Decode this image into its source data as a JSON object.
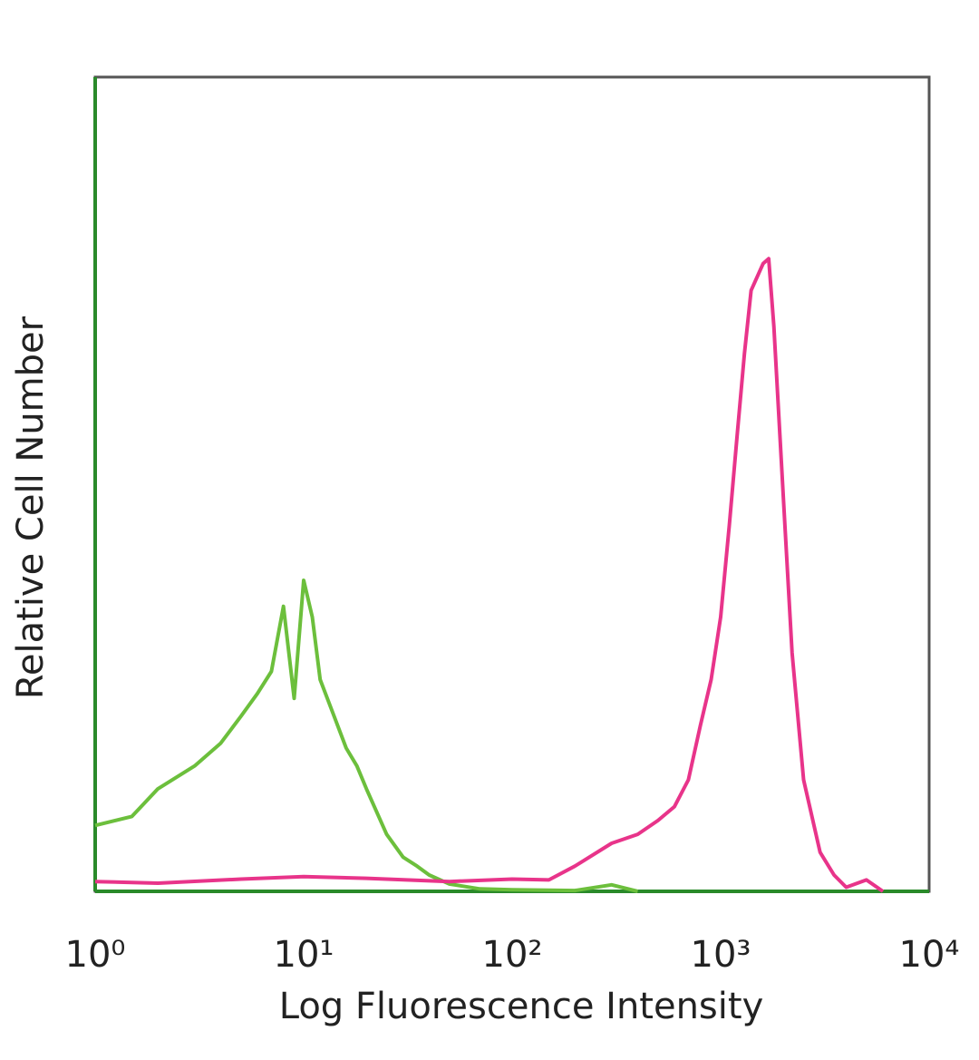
{
  "chart_data": {
    "type": "line",
    "x_label": "Log Fluorescence Intensity",
    "y_label": "Relative Cell Number",
    "xscale": "log",
    "xlim": [
      1,
      10000
    ],
    "xticks": [
      {
        "value": 1,
        "label": "10⁰"
      },
      {
        "value": 10,
        "label": "10¹"
      },
      {
        "value": 100,
        "label": "10²"
      },
      {
        "value": 1000,
        "label": "10³"
      },
      {
        "value": 10000,
        "label": "10⁴"
      }
    ],
    "ylim": [
      0,
      100
    ],
    "series": [
      {
        "color": "#6cbf3c",
        "x": [
          1,
          1.5,
          2,
          3,
          4,
          5,
          6,
          7,
          8,
          9,
          10,
          11,
          12,
          14,
          16,
          18,
          20,
          25,
          30,
          35,
          40,
          50,
          70,
          100,
          200,
          300,
          400
        ],
        "values": [
          8.1,
          9.2,
          12.6,
          15.4,
          18.2,
          21.5,
          24.3,
          27,
          35,
          23.7,
          38.2,
          33.7,
          26,
          21.5,
          17.6,
          15.4,
          12.6,
          7,
          4.2,
          3.1,
          2,
          0.9,
          0.3,
          0.2,
          0.1,
          0.8,
          0
        ]
      },
      {
        "color": "#e8348a",
        "x": [
          1,
          2,
          5,
          10,
          20,
          50,
          100,
          150,
          200,
          300,
          400,
          500,
          600,
          700,
          800,
          900,
          1000,
          1100,
          1200,
          1300,
          1400,
          1600,
          1700,
          1800,
          2000,
          2200,
          2500,
          3000,
          3500,
          4000,
          5000,
          6000
        ],
        "values": [
          1.2,
          1.0,
          1.5,
          1.8,
          1.6,
          1.2,
          1.5,
          1.4,
          3.1,
          5.9,
          7,
          8.7,
          10.4,
          13.7,
          20.4,
          26,
          33.7,
          44.9,
          56,
          66,
          73.8,
          77.1,
          77.7,
          69.4,
          48.3,
          29.3,
          13.7,
          4.8,
          2,
          0.5,
          1.4,
          0
        ]
      }
    ]
  }
}
